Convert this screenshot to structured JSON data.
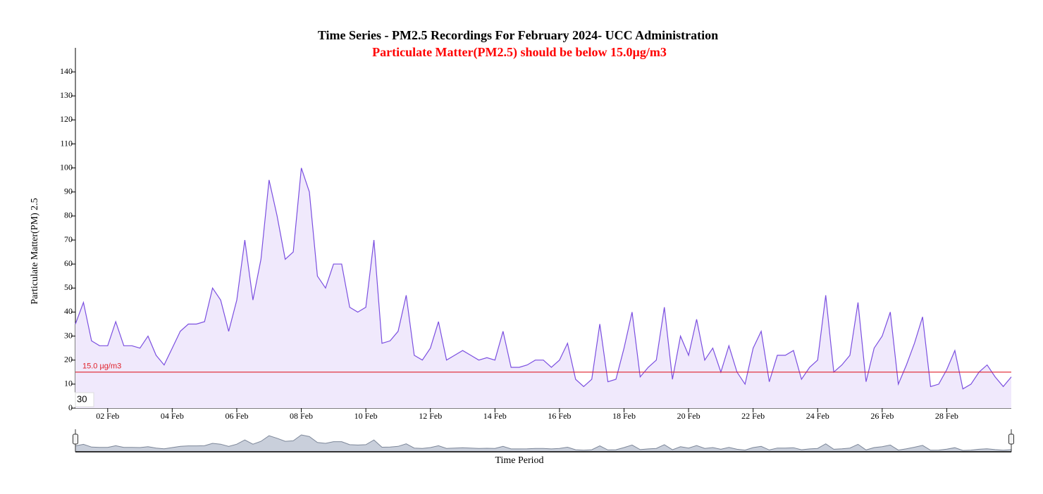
{
  "chart_data": {
    "type": "line",
    "title": "Time Series - PM2.5 Recordings For February 2024- UCC Administration",
    "subtitle": "Particulate Matter(PM2.5) should be below 15.0µg/m3",
    "y_label": "Particulate Matter(PM) 2.5",
    "x_label": "Time Period",
    "range_box": "30",
    "threshold": {
      "value": 15,
      "label": "15.0 µg/m3",
      "color": "#e0202a"
    },
    "color": "#7b4fe0",
    "fill": "#f0e9fc",
    "x": [
      1,
      1.25,
      1.5,
      1.75,
      2,
      2.25,
      2.5,
      2.75,
      3,
      3.25,
      3.5,
      3.75,
      4,
      4.25,
      4.5,
      4.75,
      5,
      5.25,
      5.5,
      5.75,
      6,
      6.25,
      6.5,
      6.75,
      7,
      7.25,
      7.5,
      7.75,
      8,
      8.25,
      8.5,
      8.75,
      9,
      9.25,
      9.5,
      9.75,
      10,
      10.25,
      10.5,
      10.75,
      11,
      11.25,
      11.5,
      11.75,
      12,
      12.25,
      12.5,
      12.75,
      13,
      13.25,
      13.5,
      13.75,
      14,
      14.25,
      14.5,
      14.75,
      15,
      15.25,
      15.5,
      15.75,
      16,
      16.25,
      16.5,
      16.75,
      17,
      17.25,
      17.5,
      17.75,
      18,
      18.25,
      18.5,
      18.75,
      19,
      19.25,
      19.5,
      19.75,
      20,
      20.25,
      20.5,
      20.75,
      21,
      21.25,
      21.5,
      21.75,
      22,
      22.25,
      22.5,
      22.75,
      23,
      23.25,
      23.5,
      23.75,
      24,
      24.25,
      24.5,
      24.75,
      25,
      25.25,
      25.5,
      25.75,
      26,
      26.25,
      26.5,
      26.75,
      27,
      27.25,
      27.5,
      27.75,
      28,
      28.25,
      28.5,
      28.75,
      29,
      29.25,
      29.5,
      29.75,
      30
    ],
    "values": [
      35,
      44,
      28,
      26,
      26,
      36,
      26,
      26,
      25,
      30,
      22,
      18,
      25,
      32,
      35,
      35,
      36,
      50,
      45,
      32,
      45,
      70,
      45,
      62,
      95,
      80,
      62,
      65,
      100,
      90,
      55,
      50,
      60,
      60,
      42,
      40,
      42,
      70,
      27,
      28,
      32,
      47,
      22,
      20,
      25,
      36,
      20,
      22,
      24,
      22,
      20,
      21,
      20,
      32,
      17,
      17,
      18,
      20,
      20,
      17,
      20,
      27,
      12,
      9,
      12,
      35,
      11,
      12,
      25,
      40,
      13,
      17,
      20,
      42,
      12,
      30,
      22,
      37,
      20,
      25,
      15,
      26,
      15,
      10,
      25,
      32,
      11,
      22,
      22,
      24,
      12,
      17,
      20,
      47,
      15,
      18,
      22,
      44,
      11,
      25,
      30,
      40,
      10,
      18,
      27,
      38,
      9,
      10,
      16,
      24,
      8,
      10,
      15,
      18,
      13,
      9,
      13
    ],
    "xlim": [
      1,
      30
    ],
    "xticks": [
      {
        "value": 2,
        "label": "02 Feb"
      },
      {
        "value": 4,
        "label": "04 Feb"
      },
      {
        "value": 6,
        "label": "06 Feb"
      },
      {
        "value": 8,
        "label": "08 Feb"
      },
      {
        "value": 10,
        "label": "10 Feb"
      },
      {
        "value": 12,
        "label": "12 Feb"
      },
      {
        "value": 14,
        "label": "14 Feb"
      },
      {
        "value": 16,
        "label": "16 Feb"
      },
      {
        "value": 18,
        "label": "18 Feb"
      },
      {
        "value": 20,
        "label": "20 Feb"
      },
      {
        "value": 22,
        "label": "22 Feb"
      },
      {
        "value": 24,
        "label": "24 Feb"
      },
      {
        "value": 26,
        "label": "26 Feb"
      },
      {
        "value": 28,
        "label": "28 Feb"
      }
    ],
    "ylim": [
      0,
      150
    ],
    "yticks": [
      0,
      10,
      20,
      30,
      40,
      50,
      60,
      70,
      80,
      90,
      100,
      110,
      120,
      130,
      140
    ]
  }
}
